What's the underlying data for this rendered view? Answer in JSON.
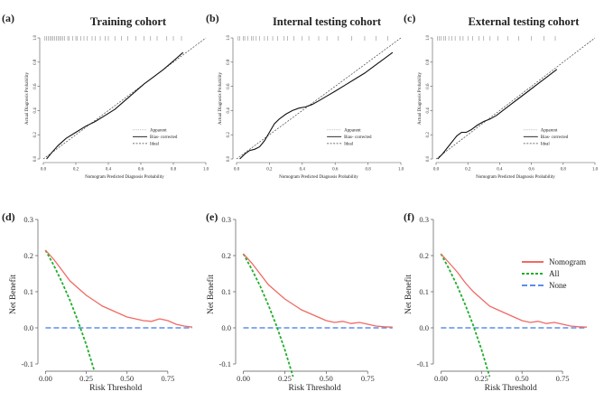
{
  "panel_letters": [
    "(a)",
    "(b)",
    "(c)",
    "(d)",
    "(e)",
    "(f)"
  ],
  "colors": {
    "nomogram": "#f06a64",
    "all": "#1fae2a",
    "none": "#5b8fe8",
    "calib_line": "#111111",
    "ideal": "#444444",
    "axis": "#555555"
  },
  "chart_data": [
    {
      "id": "a",
      "type": "line",
      "title": "Training cohort",
      "xlabel": "Nomogram Predicted Diagnosis Probability",
      "ylabel": "Actual Diagnosis Probability",
      "xlim": [
        0,
        1.0
      ],
      "ylim": [
        0,
        1.0
      ],
      "xticks": [
        0.0,
        0.2,
        0.4,
        0.6,
        0.8,
        1.0
      ],
      "xtick_labels": [
        "0.0",
        "0.2",
        "0.4",
        "0.6",
        "0.8",
        "1.0"
      ],
      "yticks": [
        0.0,
        0.2,
        0.4,
        0.6,
        0.8,
        1.0
      ],
      "ytick_labels": [
        "0.0",
        "0.2",
        "0.4",
        "0.6",
        "0.8",
        "1.0"
      ],
      "legend": [
        "Apparent",
        "Bias- corrected",
        "Ideal"
      ],
      "series": [
        {
          "name": "Apparent",
          "x": [
            0.02,
            0.05,
            0.09,
            0.14,
            0.2,
            0.26,
            0.32,
            0.38,
            0.44,
            0.5,
            0.56,
            0.62,
            0.68,
            0.74,
            0.8,
            0.86
          ],
          "y": [
            0.0,
            0.05,
            0.11,
            0.17,
            0.22,
            0.27,
            0.31,
            0.36,
            0.41,
            0.48,
            0.55,
            0.62,
            0.68,
            0.74,
            0.81,
            0.88
          ]
        },
        {
          "name": "Bias- corrected",
          "x": [
            0.02,
            0.05,
            0.09,
            0.14,
            0.2,
            0.26,
            0.32,
            0.38,
            0.44,
            0.5,
            0.56,
            0.62,
            0.68,
            0.74,
            0.8,
            0.86
          ],
          "y": [
            0.0,
            0.05,
            0.11,
            0.17,
            0.22,
            0.27,
            0.31,
            0.36,
            0.41,
            0.48,
            0.55,
            0.62,
            0.68,
            0.74,
            0.81,
            0.88
          ]
        },
        {
          "name": "Ideal",
          "x": [
            0,
            1
          ],
          "y": [
            0,
            1
          ]
        }
      ],
      "rug_x": [
        0.01,
        0.02,
        0.03,
        0.04,
        0.05,
        0.06,
        0.07,
        0.08,
        0.09,
        0.1,
        0.11,
        0.12,
        0.13,
        0.15,
        0.16,
        0.18,
        0.2,
        0.21,
        0.23,
        0.25,
        0.27,
        0.3,
        0.32,
        0.35,
        0.38,
        0.4,
        0.44,
        0.48,
        0.52,
        0.57,
        0.62,
        0.66,
        0.7,
        0.76,
        0.8,
        0.85
      ]
    },
    {
      "id": "b",
      "type": "line",
      "title": "Internal testing cohort",
      "xlabel": "Nomogram Predicted Diagnosis Probability",
      "ylabel": "Actual Diagnosis Probability",
      "xlim": [
        0,
        1.0
      ],
      "ylim": [
        0,
        1.0
      ],
      "xticks": [
        0.0,
        0.2,
        0.4,
        0.6,
        0.8,
        1.0
      ],
      "xtick_labels": [
        "0.0",
        "0.2",
        "0.4",
        "0.6",
        "0.8",
        "1.0"
      ],
      "yticks": [
        0.0,
        0.2,
        0.4,
        0.6,
        0.8,
        1.0
      ],
      "ytick_labels": [
        "0.0",
        "0.2",
        "0.4",
        "0.6",
        "0.8",
        "1.0"
      ],
      "legend": [
        "Apparent",
        "Bias- corrected",
        "Ideal"
      ],
      "series": [
        {
          "name": "Apparent",
          "x": [
            0.02,
            0.05,
            0.08,
            0.11,
            0.14,
            0.17,
            0.2,
            0.23,
            0.26,
            0.3,
            0.34,
            0.38,
            0.42,
            0.46,
            0.5,
            0.55,
            0.6,
            0.66,
            0.72,
            0.78,
            0.84,
            0.9,
            0.95
          ],
          "y": [
            0.0,
            0.04,
            0.07,
            0.08,
            0.1,
            0.15,
            0.22,
            0.29,
            0.33,
            0.37,
            0.4,
            0.42,
            0.43,
            0.45,
            0.48,
            0.52,
            0.56,
            0.61,
            0.66,
            0.71,
            0.77,
            0.83,
            0.88
          ]
        },
        {
          "name": "Bias- corrected",
          "x": [
            0.02,
            0.05,
            0.08,
            0.11,
            0.14,
            0.17,
            0.2,
            0.23,
            0.26,
            0.3,
            0.34,
            0.38,
            0.42,
            0.46,
            0.5,
            0.55,
            0.6,
            0.66,
            0.72,
            0.78,
            0.84,
            0.9,
            0.95
          ],
          "y": [
            0.0,
            0.04,
            0.07,
            0.08,
            0.1,
            0.15,
            0.22,
            0.29,
            0.33,
            0.37,
            0.4,
            0.42,
            0.43,
            0.45,
            0.48,
            0.52,
            0.56,
            0.61,
            0.66,
            0.71,
            0.77,
            0.83,
            0.88
          ]
        },
        {
          "name": "Ideal",
          "x": [
            0,
            1
          ],
          "y": [
            0,
            1
          ]
        }
      ],
      "rug_x": [
        0.01,
        0.02,
        0.04,
        0.05,
        0.07,
        0.09,
        0.1,
        0.12,
        0.14,
        0.17,
        0.19,
        0.22,
        0.25,
        0.29,
        0.31,
        0.35,
        0.4,
        0.44,
        0.5,
        0.55,
        0.62,
        0.7,
        0.78,
        0.85,
        0.92
      ]
    },
    {
      "id": "c",
      "type": "line",
      "title": "External testing cohort",
      "xlabel": "Nomogram Predicted Diagnosis Probability",
      "ylabel": "Actual Diagnosis Probability",
      "xlim": [
        0,
        1.0
      ],
      "ylim": [
        0,
        1.0
      ],
      "xticks": [
        0.0,
        0.2,
        0.4,
        0.6,
        0.8,
        1.0
      ],
      "xtick_labels": [
        "0.0",
        "0.2",
        "0.4",
        "0.6",
        "0.8",
        "1.0"
      ],
      "yticks": [
        0.0,
        0.2,
        0.4,
        0.6,
        0.8,
        1.0
      ],
      "ytick_labels": [
        "0.0",
        "0.2",
        "0.4",
        "0.6",
        "0.8",
        "1.0"
      ],
      "legend": [
        "Apparent",
        "Bias- corrected",
        "Ideal"
      ],
      "series": [
        {
          "name": "Apparent",
          "x": [
            0.01,
            0.04,
            0.07,
            0.1,
            0.13,
            0.16,
            0.19,
            0.22,
            0.26,
            0.3,
            0.34,
            0.38,
            0.42,
            0.47,
            0.52,
            0.58,
            0.64,
            0.7,
            0.76
          ],
          "y": [
            0.0,
            0.04,
            0.09,
            0.14,
            0.19,
            0.22,
            0.22,
            0.24,
            0.28,
            0.31,
            0.33,
            0.36,
            0.4,
            0.45,
            0.5,
            0.56,
            0.62,
            0.68,
            0.74
          ]
        },
        {
          "name": "Bias- corrected",
          "x": [
            0.01,
            0.04,
            0.07,
            0.1,
            0.13,
            0.16,
            0.19,
            0.22,
            0.26,
            0.3,
            0.34,
            0.38,
            0.42,
            0.47,
            0.52,
            0.58,
            0.64,
            0.7,
            0.76
          ],
          "y": [
            0.0,
            0.04,
            0.09,
            0.14,
            0.19,
            0.22,
            0.22,
            0.24,
            0.28,
            0.31,
            0.33,
            0.36,
            0.4,
            0.45,
            0.5,
            0.56,
            0.62,
            0.68,
            0.74
          ]
        },
        {
          "name": "Ideal",
          "x": [
            0,
            1
          ],
          "y": [
            0,
            1
          ]
        }
      ],
      "rug_x": [
        0.01,
        0.02,
        0.03,
        0.05,
        0.06,
        0.08,
        0.1,
        0.12,
        0.15,
        0.17,
        0.2,
        0.23,
        0.27,
        0.3,
        0.34,
        0.39,
        0.45,
        0.52,
        0.6,
        0.68,
        0.75
      ]
    },
    {
      "id": "d",
      "type": "line",
      "title": "",
      "xlabel": "Risk Threshold",
      "ylabel": "Net Benefit",
      "xlim": [
        -0.03,
        0.95
      ],
      "ylim": [
        -0.115,
        0.3
      ],
      "xticks": [
        0.0,
        0.25,
        0.5,
        0.75
      ],
      "xtick_labels": [
        "0.00",
        "0.25",
        "0.50",
        "0.75"
      ],
      "yticks": [
        -0.1,
        0.0,
        0.1,
        0.2,
        0.3
      ],
      "ytick_labels": [
        "-0.1",
        "0.0",
        "0.1",
        "0.2",
        "0.3"
      ],
      "series": [
        {
          "name": "Nomogram",
          "x": [
            0.0,
            0.05,
            0.1,
            0.15,
            0.2,
            0.25,
            0.3,
            0.35,
            0.4,
            0.45,
            0.5,
            0.55,
            0.6,
            0.65,
            0.7,
            0.75,
            0.8,
            0.85,
            0.9
          ],
          "y": [
            0.215,
            0.19,
            0.16,
            0.13,
            0.11,
            0.09,
            0.075,
            0.06,
            0.05,
            0.04,
            0.03,
            0.025,
            0.02,
            0.018,
            0.025,
            0.02,
            0.01,
            0.005,
            0.002
          ]
        },
        {
          "name": "All",
          "x": [
            0.0,
            0.05,
            0.1,
            0.15,
            0.2,
            0.25,
            0.3
          ],
          "y": [
            0.215,
            0.174,
            0.127,
            0.076,
            0.018,
            -0.047,
            -0.12
          ]
        },
        {
          "name": "None",
          "x": [
            0.0,
            0.9
          ],
          "y": [
            0,
            0
          ]
        }
      ]
    },
    {
      "id": "e",
      "type": "line",
      "title": "",
      "xlabel": "Risk Threshold",
      "ylabel": "Net Benefit",
      "xlim": [
        -0.03,
        0.95
      ],
      "ylim": [
        -0.115,
        0.3
      ],
      "xticks": [
        0.0,
        0.25,
        0.5,
        0.75
      ],
      "xtick_labels": [
        "0.00",
        "0.25",
        "0.50",
        "0.75"
      ],
      "yticks": [
        -0.1,
        0.0,
        0.1,
        0.2,
        0.3
      ],
      "ytick_labels": [
        "-0.1",
        "0.0",
        "0.1",
        "0.2",
        "0.3"
      ],
      "series": [
        {
          "name": "Nomogram",
          "x": [
            0.0,
            0.05,
            0.1,
            0.15,
            0.2,
            0.25,
            0.3,
            0.35,
            0.4,
            0.45,
            0.5,
            0.55,
            0.6,
            0.65,
            0.7,
            0.75,
            0.8,
            0.85,
            0.9
          ],
          "y": [
            0.205,
            0.18,
            0.15,
            0.12,
            0.1,
            0.08,
            0.065,
            0.05,
            0.04,
            0.03,
            0.02,
            0.015,
            0.018,
            0.012,
            0.015,
            0.01,
            0.005,
            0.003,
            0.002
          ]
        },
        {
          "name": "All",
          "x": [
            0.0,
            0.05,
            0.1,
            0.15,
            0.2,
            0.25,
            0.3
          ],
          "y": [
            0.205,
            0.163,
            0.117,
            0.064,
            0.006,
            -0.06,
            -0.135
          ]
        },
        {
          "name": "None",
          "x": [
            0.0,
            0.9
          ],
          "y": [
            0,
            0
          ]
        }
      ]
    },
    {
      "id": "f",
      "type": "line",
      "title": "",
      "xlabel": "Risk Threshold",
      "ylabel": "Net Benefit",
      "xlim": [
        -0.03,
        0.95
      ],
      "ylim": [
        -0.115,
        0.3
      ],
      "xticks": [
        0.0,
        0.25,
        0.5,
        0.75
      ],
      "xtick_labels": [
        "0.00",
        "0.25",
        "0.50",
        "0.75"
      ],
      "yticks": [
        -0.1,
        0.0,
        0.1,
        0.2,
        0.3
      ],
      "ytick_labels": [
        "-0.1",
        "0.0",
        "0.1",
        "0.2",
        "0.3"
      ],
      "series": [
        {
          "name": "Nomogram",
          "x": [
            0.0,
            0.05,
            0.1,
            0.15,
            0.2,
            0.25,
            0.3,
            0.35,
            0.4,
            0.45,
            0.5,
            0.55,
            0.6,
            0.65,
            0.7,
            0.75,
            0.8,
            0.85,
            0.9
          ],
          "y": [
            0.205,
            0.18,
            0.155,
            0.125,
            0.1,
            0.08,
            0.06,
            0.05,
            0.04,
            0.03,
            0.02,
            0.015,
            0.018,
            0.012,
            0.015,
            0.01,
            0.005,
            0.003,
            0.002
          ]
        },
        {
          "name": "All",
          "x": [
            0.0,
            0.05,
            0.1,
            0.15,
            0.2,
            0.25,
            0.3
          ],
          "y": [
            0.205,
            0.163,
            0.117,
            0.064,
            0.006,
            -0.06,
            -0.135
          ]
        },
        {
          "name": "None",
          "x": [
            0.0,
            0.9
          ],
          "y": [
            0,
            0
          ]
        }
      ]
    }
  ],
  "dca_legend": [
    "Nomogram",
    "All",
    "None"
  ]
}
